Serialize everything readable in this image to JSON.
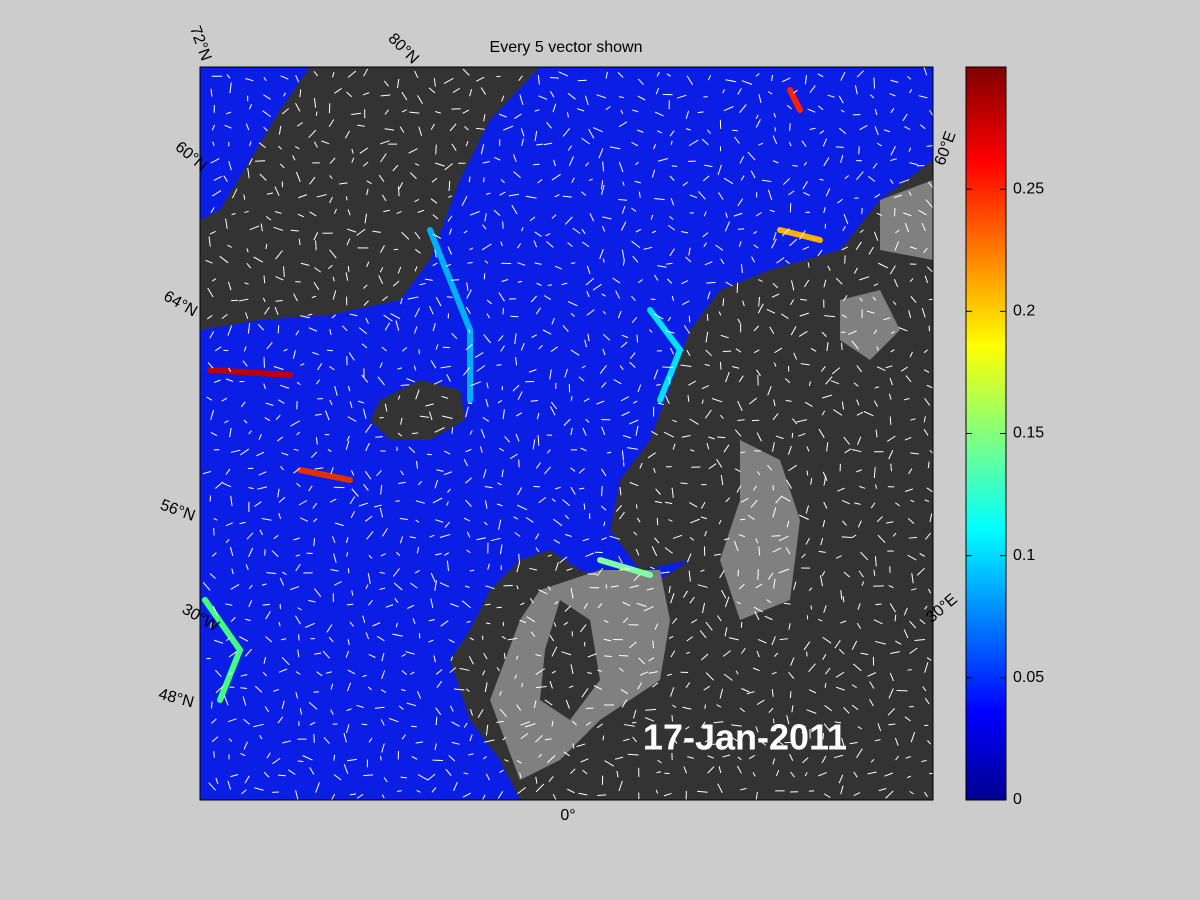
{
  "title": "Every 5 vector shown",
  "date_label": "17-Jan-2011",
  "graticule_labels": [
    "72°N",
    "80°N",
    "60°N",
    "64°N",
    "56°N",
    "30°W",
    "48°N",
    "0°",
    "60°E",
    "30°E"
  ],
  "colorbar": {
    "lim": [
      0,
      0.3
    ],
    "ticks": [
      0,
      0.05,
      0.1,
      0.15,
      0.2,
      0.25
    ],
    "colormap": "jet"
  }
}
